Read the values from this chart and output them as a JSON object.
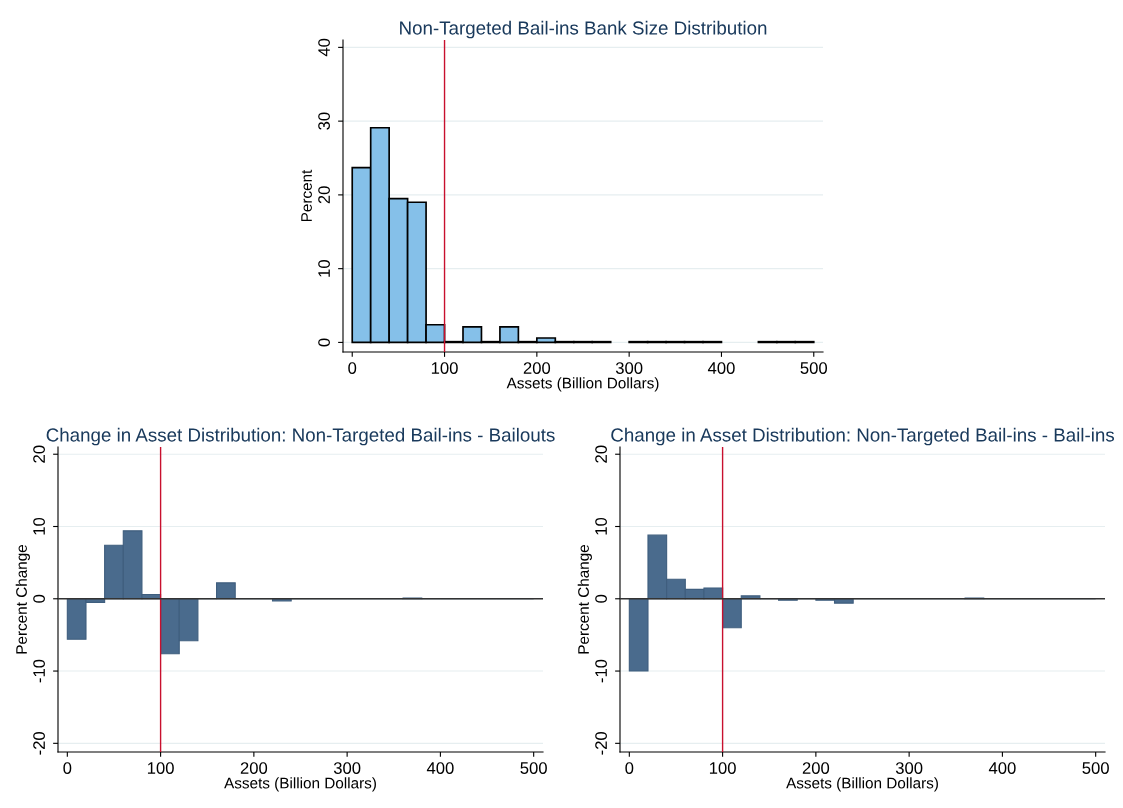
{
  "chart_data": [
    {
      "type": "histogram",
      "title": "Non-Targeted Bail-ins Bank Size Distribution",
      "xlabel": "Assets (Billion Dollars)",
      "ylabel": "Percent",
      "bins": [
        0,
        20,
        40,
        60,
        80,
        100,
        120,
        140,
        160,
        180,
        200,
        220,
        240,
        260,
        280,
        300,
        320,
        340,
        360,
        380,
        400,
        420,
        440,
        460,
        480,
        500
      ],
      "values": [
        23.7,
        29.1,
        19.5,
        19.0,
        2.4,
        0.1,
        2.1,
        0.1,
        2.1,
        0.1,
        0.6,
        0.1,
        0.1,
        0.1,
        null,
        0.1,
        0.1,
        0.1,
        0.1,
        0.1,
        null,
        null,
        0.1,
        0.1,
        0.1
      ],
      "color": "#85c0e9",
      "xlim": [
        -10,
        510
      ],
      "ylim": [
        -1.3,
        41
      ],
      "xticks": [
        0,
        100,
        200,
        300,
        400,
        500
      ],
      "yticks": [
        0,
        10,
        20,
        30,
        40
      ],
      "grid": "y",
      "ref_lines": [
        {
          "axis": "x",
          "value": 100,
          "color": "#c8102e"
        }
      ]
    },
    {
      "type": "histogram",
      "title": "Change in Asset Distribution: Non-Targeted Bail-ins - Bailouts",
      "xlabel": "Assets (Billion Dollars)",
      "ylabel": "Percent Change",
      "bins": [
        0,
        20,
        40,
        60,
        80,
        100,
        120,
        140,
        160,
        180,
        200,
        220,
        240,
        260,
        280,
        300,
        320,
        340,
        360,
        380,
        400,
        420,
        440,
        460,
        480,
        500
      ],
      "values": [
        -5.6,
        -0.5,
        7.4,
        9.4,
        0.6,
        -7.6,
        -5.8,
        0,
        2.2,
        0,
        0,
        -0.3,
        0,
        0,
        0,
        0,
        0,
        0,
        0.1,
        0,
        0,
        0,
        0,
        0,
        0
      ],
      "color": "#4a6b8d",
      "xlim": [
        -10,
        510
      ],
      "ylim": [
        -21.2,
        21
      ],
      "xticks": [
        0,
        100,
        200,
        300,
        400,
        500
      ],
      "yticks": [
        -20,
        -10,
        0,
        10,
        20
      ],
      "grid": "y",
      "ref_lines": [
        {
          "axis": "x",
          "value": 100,
          "color": "#c8102e"
        },
        {
          "axis": "y",
          "value": 0,
          "color": "#333333"
        }
      ]
    },
    {
      "type": "histogram",
      "title": "Change in Asset Distribution: Non-Targeted Bail-ins - Bail-ins",
      "xlabel": "Assets (Billion Dollars)",
      "ylabel": "Percent Change",
      "bins": [
        0,
        20,
        40,
        60,
        80,
        100,
        120,
        140,
        160,
        180,
        200,
        220,
        240,
        260,
        280,
        300,
        320,
        340,
        360,
        380,
        400,
        420,
        440,
        460,
        480,
        500
      ],
      "values": [
        -10.0,
        8.8,
        2.7,
        1.3,
        1.5,
        -4.0,
        0.4,
        0,
        -0.2,
        0,
        -0.2,
        -0.6,
        0,
        0,
        0,
        0,
        0,
        0,
        0.1,
        0,
        0,
        0,
        0,
        0,
        0
      ],
      "color": "#4a6b8d",
      "xlim": [
        -10,
        510
      ],
      "ylim": [
        -21.2,
        21
      ],
      "xticks": [
        0,
        100,
        200,
        300,
        400,
        500
      ],
      "yticks": [
        -20,
        -10,
        0,
        10,
        20
      ],
      "grid": "y",
      "ref_lines": [
        {
          "axis": "x",
          "value": 100,
          "color": "#c8102e"
        },
        {
          "axis": "y",
          "value": 0,
          "color": "#333333"
        }
      ]
    }
  ]
}
